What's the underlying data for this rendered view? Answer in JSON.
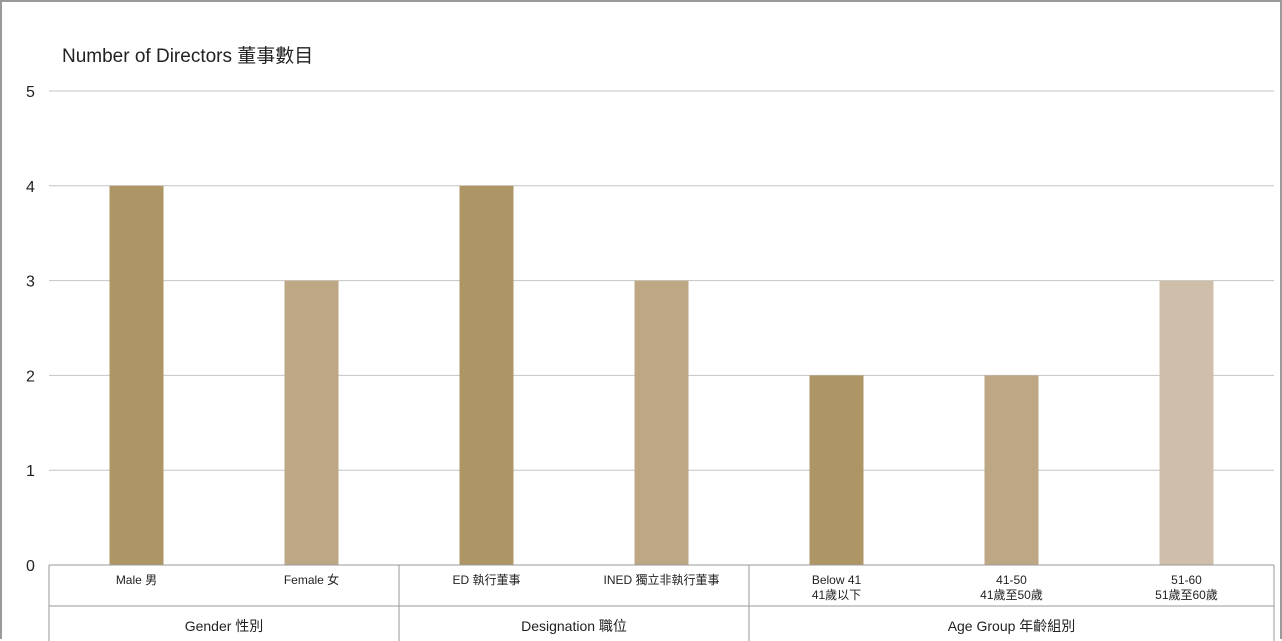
{
  "chart_data": {
    "type": "bar",
    "title": "Number of Directors 董事數目",
    "ylim": [
      0,
      5
    ],
    "yticks": [
      0,
      1,
      2,
      3,
      4,
      5
    ],
    "grid": true,
    "categories": [
      {
        "lines": [
          "Male 男"
        ],
        "value": 4,
        "color": "#AE9566"
      },
      {
        "lines": [
          "Female 女"
        ],
        "value": 3,
        "color": "#BDA785"
      },
      {
        "lines": [
          "ED 執行董事"
        ],
        "value": 4,
        "color": "#AE9566"
      },
      {
        "lines": [
          "INED 獨立非執行董事"
        ],
        "value": 3,
        "color": "#BDA785"
      },
      {
        "lines": [
          "Below 41",
          "41歲以下"
        ],
        "value": 2,
        "color": "#AE9566"
      },
      {
        "lines": [
          "41-50",
          "41歲至50歲"
        ],
        "value": 2,
        "color": "#BDA785"
      },
      {
        "lines": [
          "51-60",
          "51歲至60歲"
        ],
        "value": 3,
        "color": "#CFBFAA"
      }
    ],
    "groups": [
      {
        "label": "Gender 性別",
        "count": 2
      },
      {
        "label": "Designation 職位",
        "count": 2
      },
      {
        "label": "Age Group 年齡組別",
        "count": 3
      }
    ]
  }
}
